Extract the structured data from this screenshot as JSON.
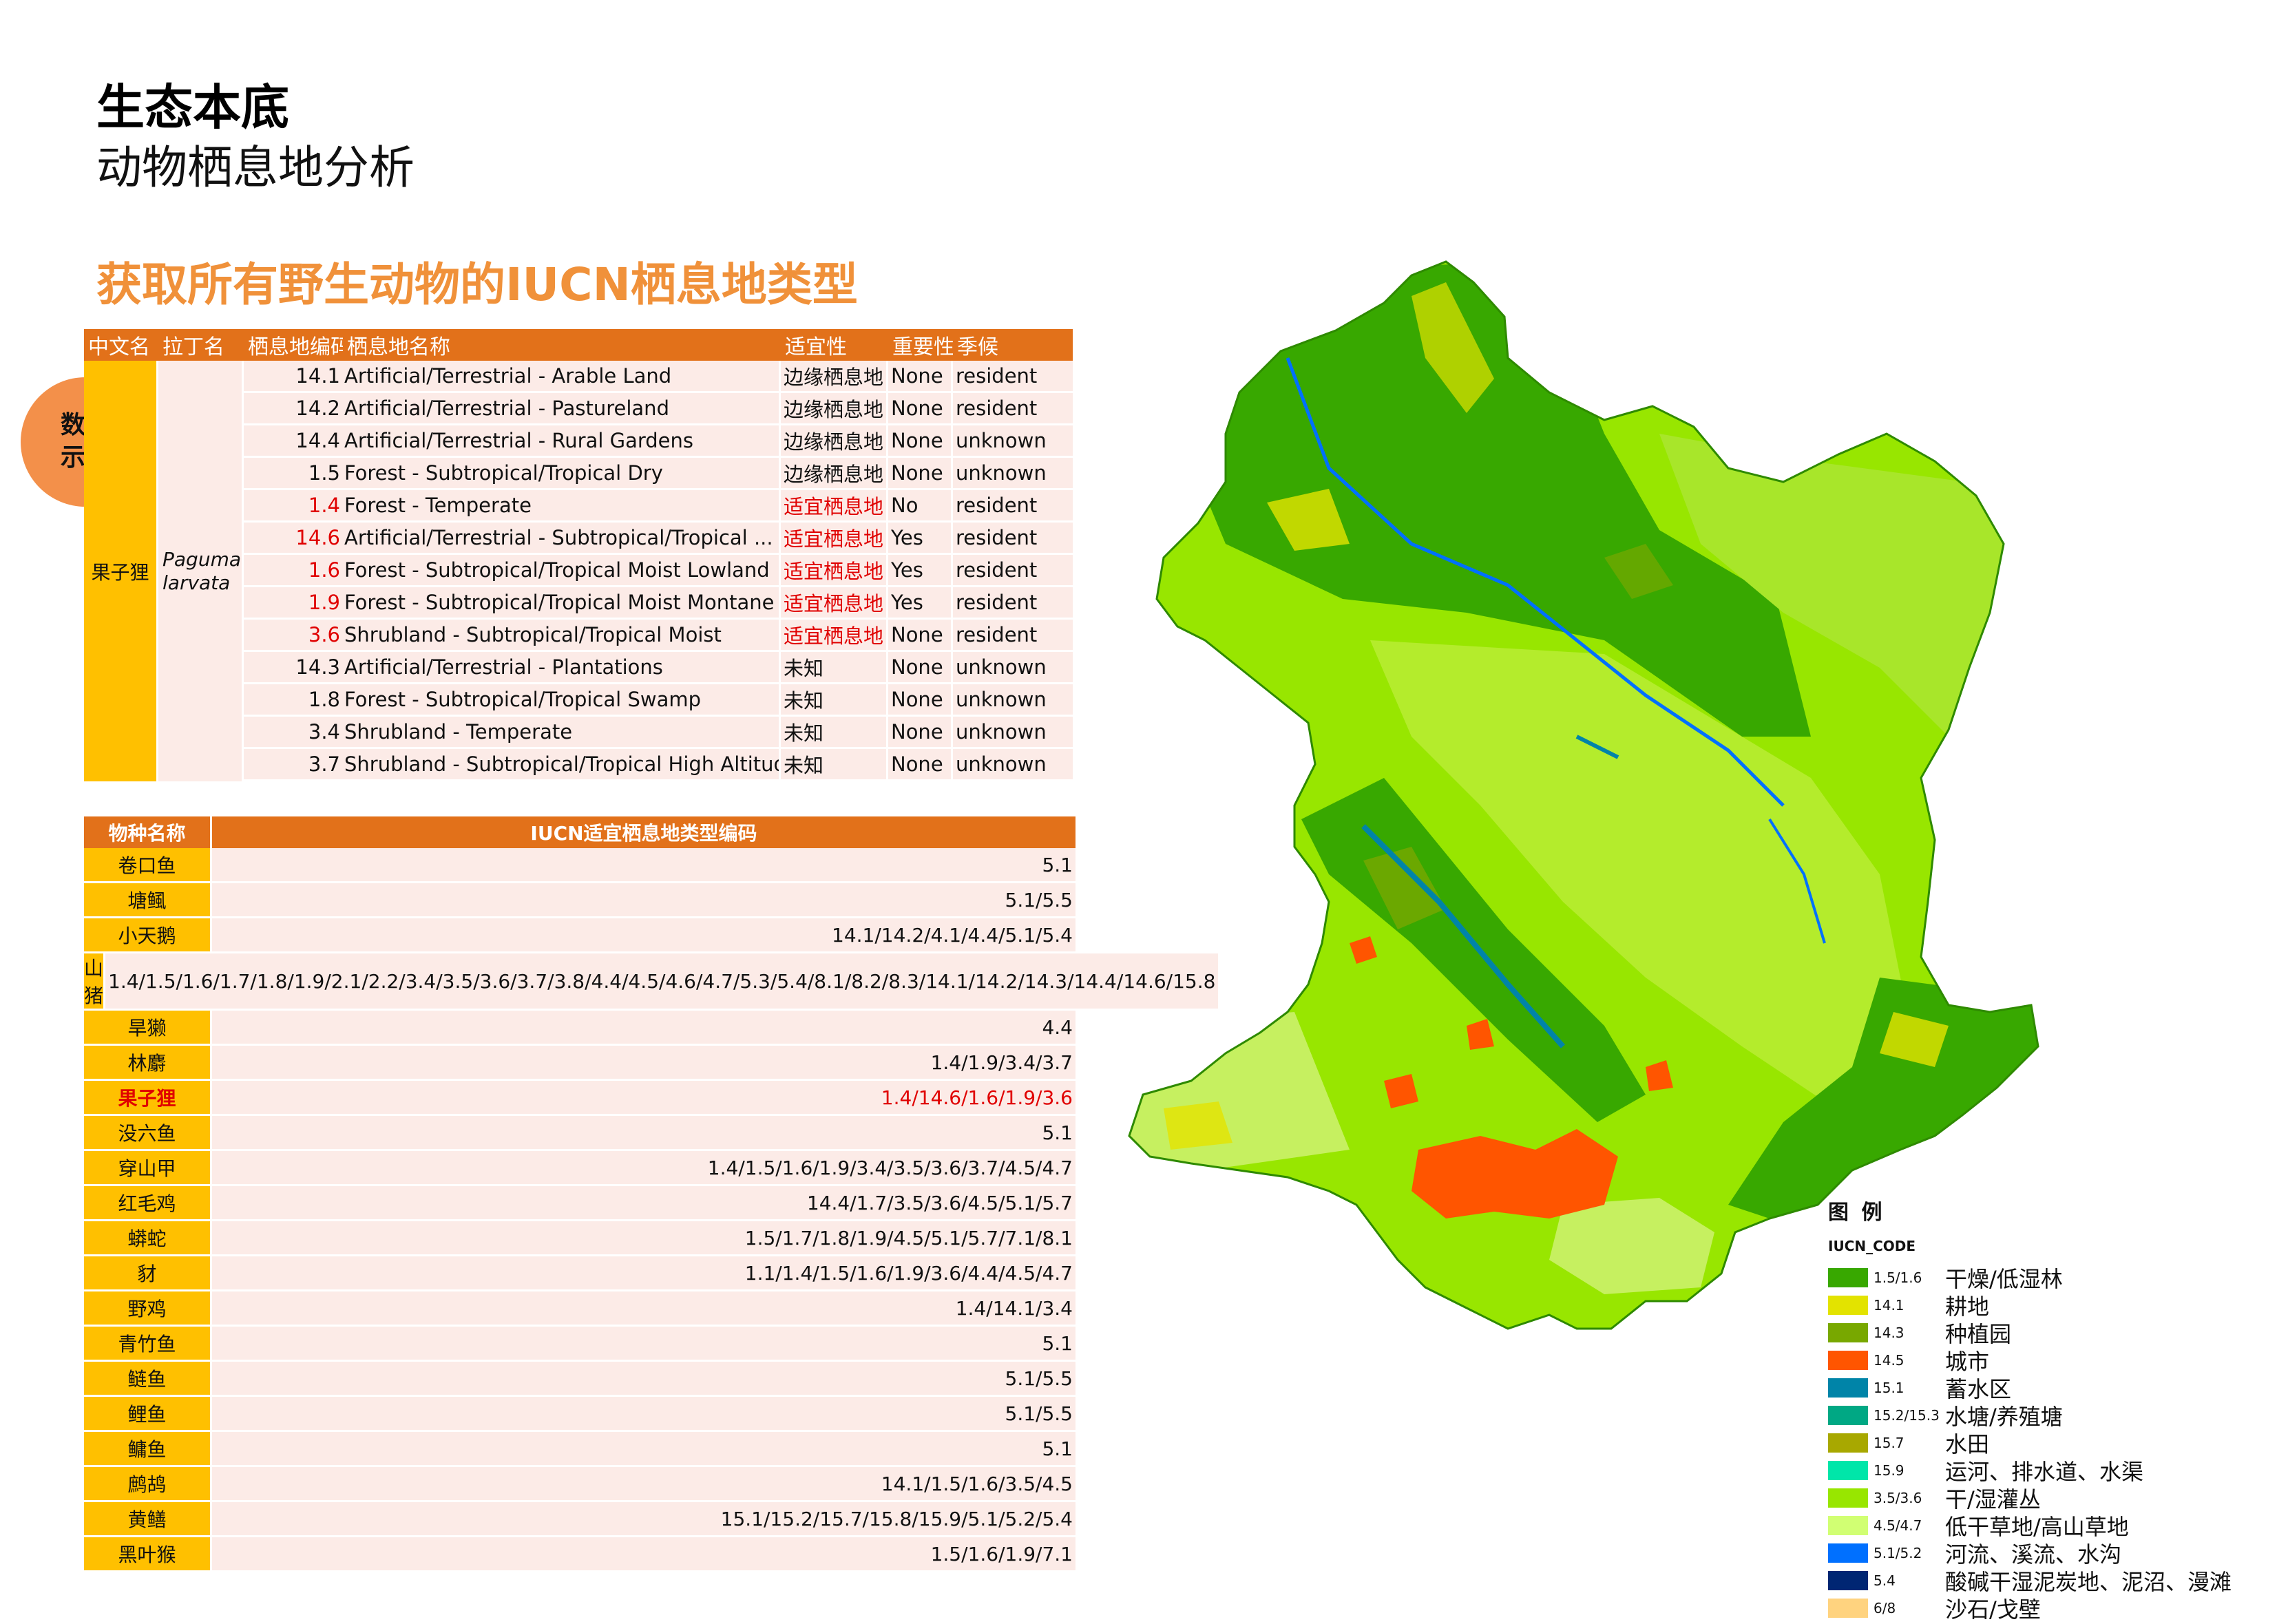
{
  "header": {
    "title": "生态本底",
    "subtitle": "动物栖息地分析",
    "section_heading": "获取所有野生动物的IUCN栖息地类型",
    "badge_line1": "数据",
    "badge_line2": "示例"
  },
  "habitat_table": {
    "headers": [
      "中文名",
      "拉丁名",
      "栖息地编码",
      "栖息地名称",
      "适宜性",
      "重要性",
      "季候"
    ],
    "chinese_name": "果子狸",
    "latin_name": "Paguma larvata",
    "rows": [
      {
        "code": "14.1",
        "name": "Artificial/Terrestrial - Arable Land",
        "suitability": "边缘栖息地",
        "importance": "None",
        "season": "resident",
        "highlight": false
      },
      {
        "code": "14.2",
        "name": "Artificial/Terrestrial - Pastureland",
        "suitability": "边缘栖息地",
        "importance": "None",
        "season": "resident",
        "highlight": false
      },
      {
        "code": "14.4",
        "name": "Artificial/Terrestrial - Rural Gardens",
        "suitability": "边缘栖息地",
        "importance": "None",
        "season": "unknown",
        "highlight": false
      },
      {
        "code": "1.5",
        "name": "Forest - Subtropical/Tropical Dry",
        "suitability": "边缘栖息地",
        "importance": "None",
        "season": "unknown",
        "highlight": false
      },
      {
        "code": "1.4",
        "name": "Forest - Temperate",
        "suitability": "适宜栖息地",
        "importance": "No",
        "season": "resident",
        "highlight": true
      },
      {
        "code": "14.6",
        "name": "Artificial/Terrestrial - Subtropical/Tropical ...",
        "suitability": "适宜栖息地",
        "importance": "Yes",
        "season": "resident",
        "highlight": true
      },
      {
        "code": "1.6",
        "name": "Forest - Subtropical/Tropical Moist Lowland",
        "suitability": "适宜栖息地",
        "importance": "Yes",
        "season": "resident",
        "highlight": true
      },
      {
        "code": "1.9",
        "name": "Forest - Subtropical/Tropical Moist Montane",
        "suitability": "适宜栖息地",
        "importance": "Yes",
        "season": "resident",
        "highlight": true
      },
      {
        "code": "3.6",
        "name": "Shrubland - Subtropical/Tropical Moist",
        "suitability": "适宜栖息地",
        "importance": "None",
        "season": "resident",
        "highlight": true
      },
      {
        "code": "14.3",
        "name": "Artificial/Terrestrial - Plantations",
        "suitability": "未知",
        "importance": "None",
        "season": "unknown",
        "highlight": false
      },
      {
        "code": "1.8",
        "name": "Forest - Subtropical/Tropical Swamp",
        "suitability": "未知",
        "importance": "None",
        "season": "unknown",
        "highlight": false
      },
      {
        "code": "3.4",
        "name": "Shrubland - Temperate",
        "suitability": "未知",
        "importance": "None",
        "season": "unknown",
        "highlight": false
      },
      {
        "code": "3.7",
        "name": "Shrubland - Subtropical/Tropical High Altitude",
        "suitability": "未知",
        "importance": "None",
        "season": "unknown",
        "highlight": false
      }
    ]
  },
  "species_table": {
    "headers": [
      "物种名称",
      "IUCN适宜栖息地类型编码"
    ],
    "rows": [
      {
        "species": "卷口鱼",
        "codes": "5.1",
        "highlight": false
      },
      {
        "species": "塘鲺",
        "codes": "5.1/5.5",
        "highlight": false
      },
      {
        "species": "小天鹅",
        "codes": "14.1/14.2/4.1/4.4/5.1/5.4",
        "highlight": false
      },
      {
        "species": "山猪",
        "codes": "1.4/1.5/1.6/1.7/1.8/1.9/2.1/2.2/3.4/3.5/3.6/3.7/3.8/4.4/4.5/4.6/4.7/5.3/5.4/8.1/8.2/8.3/14.1/14.2/14.3/14.4/14.6/15.8",
        "highlight": false
      },
      {
        "species": "旱獭",
        "codes": "4.4",
        "highlight": false
      },
      {
        "species": "林麝",
        "codes": "1.4/1.9/3.4/3.7",
        "highlight": false
      },
      {
        "species": "果子狸",
        "codes": "1.4/14.6/1.6/1.9/3.6",
        "highlight": true
      },
      {
        "species": "没六鱼",
        "codes": "5.1",
        "highlight": false
      },
      {
        "species": "穿山甲",
        "codes": "1.4/1.5/1.6/1.9/3.4/3.5/3.6/3.7/4.5/4.7",
        "highlight": false
      },
      {
        "species": "红毛鸡",
        "codes": "14.4/1.7/3.5/3.6/4.5/5.1/5.7",
        "highlight": false
      },
      {
        "species": "蟒蛇",
        "codes": "1.5/1.7/1.8/1.9/4.5/5.1/5.7/7.1/8.1",
        "highlight": false
      },
      {
        "species": "豺",
        "codes": "1.1/1.4/1.5/1.6/1.9/3.6/4.4/4.5/4.7",
        "highlight": false
      },
      {
        "species": "野鸡",
        "codes": "1.4/14.1/3.4",
        "highlight": false
      },
      {
        "species": "青竹鱼",
        "codes": "5.1",
        "highlight": false
      },
      {
        "species": "鲢鱼",
        "codes": "5.1/5.5",
        "highlight": false
      },
      {
        "species": "鲤鱼",
        "codes": "5.1/5.5",
        "highlight": false
      },
      {
        "species": "鳙鱼",
        "codes": "5.1",
        "highlight": false
      },
      {
        "species": "鹧鸪",
        "codes": "14.1/1.5/1.6/3.5/4.5",
        "highlight": false
      },
      {
        "species": "黄鳝",
        "codes": "15.1/15.2/15.7/15.8/15.9/5.1/5.2/5.4",
        "highlight": false
      },
      {
        "species": "黑叶猴",
        "codes": "1.5/1.6/1.9/7.1",
        "highlight": false
      }
    ]
  },
  "legend": {
    "title": "图 例",
    "field": "IUCN_CODE",
    "items": [
      {
        "code": "1.5/1.6",
        "label": "干燥/低湿林",
        "color": "#38a800"
      },
      {
        "code": "14.1",
        "label": "耕地",
        "color": "#e3e300"
      },
      {
        "code": "14.3",
        "label": "种植园",
        "color": "#78a800"
      },
      {
        "code": "14.5",
        "label": "城市",
        "color": "#ff5500"
      },
      {
        "code": "15.1",
        "label": "蓄水区",
        "color": "#0084a8"
      },
      {
        "code": "15.2/15.3",
        "label": "水塘/养殖塘",
        "color": "#00a884"
      },
      {
        "code": "15.7",
        "label": "水田",
        "color": "#a8a800"
      },
      {
        "code": "15.9",
        "label": "运河、排水道、水渠",
        "color": "#00e6a9"
      },
      {
        "code": "3.5/3.6",
        "label": "干/湿灌丛",
        "color": "#98e600"
      },
      {
        "code": "4.5/4.7",
        "label": "低干草地/高山草地",
        "color": "#d1ff73"
      },
      {
        "code": "5.1/5.2",
        "label": "河流、溪流、水沟",
        "color": "#0070ff"
      },
      {
        "code": "5.4",
        "label": "酸碱干湿泥炭地、泥沼、漫滩",
        "color": "#002673"
      },
      {
        "code": "6/8",
        "label": "沙石/戈壁",
        "color": "#ffd37f"
      }
    ]
  }
}
